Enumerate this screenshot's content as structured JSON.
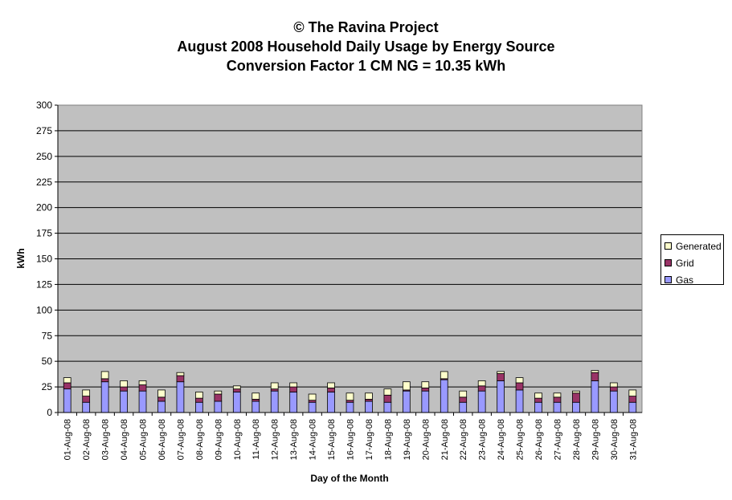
{
  "colors": {
    "gas": "#9999ff",
    "grid": "#993366",
    "generated": "#ffffcc",
    "plot_bg": "#c0c0c0"
  },
  "chart_data": {
    "type": "bar",
    "stacked": true,
    "title": "© The Ravina Project",
    "subtitle_1": "August 2008 Household Daily Usage by Energy Source",
    "subtitle_2": "Conversion Factor 1 CM NG = 10.35 kWh",
    "xlabel": "Day of the Month",
    "ylabel": "kWh",
    "ylim": [
      0,
      300
    ],
    "yticks": [
      0,
      25,
      50,
      75,
      100,
      125,
      150,
      175,
      200,
      225,
      250,
      275,
      300
    ],
    "grid": true,
    "legend_position": "right",
    "categories": [
      "01-Aug-08",
      "02-Aug-08",
      "03-Aug-08",
      "04-Aug-08",
      "05-Aug-08",
      "06-Aug-08",
      "07-Aug-08",
      "08-Aug-08",
      "09-Aug-08",
      "10-Aug-08",
      "11-Aug-08",
      "12-Aug-08",
      "13-Aug-08",
      "14-Aug-08",
      "15-Aug-08",
      "16-Aug-08",
      "17-Aug-08",
      "18-Aug-08",
      "19-Aug-08",
      "20-Aug-08",
      "21-Aug-08",
      "22-Aug-08",
      "23-Aug-08",
      "24-Aug-08",
      "25-Aug-08",
      "26-Aug-08",
      "27-Aug-08",
      "28-Aug-08",
      "29-Aug-08",
      "30-Aug-08",
      "31-Aug-08"
    ],
    "series": [
      {
        "name": "Gas",
        "values": [
          23,
          10,
          30,
          21,
          21,
          11,
          30,
          10,
          11,
          20,
          11,
          21,
          20,
          10,
          20,
          10,
          11,
          10,
          21,
          21,
          32,
          10,
          21,
          31,
          22,
          10,
          10,
          10,
          31,
          21,
          10
        ]
      },
      {
        "name": "Grid",
        "values": [
          6,
          6,
          3,
          4,
          6,
          4,
          6,
          4,
          7,
          3,
          2,
          2,
          5,
          2,
          4,
          2,
          2,
          7,
          1,
          3,
          1,
          5,
          5,
          7,
          7,
          4,
          5,
          9,
          8,
          4,
          6
        ]
      },
      {
        "name": "Generated",
        "values": [
          5,
          6,
          7,
          6,
          4,
          7,
          3,
          6,
          3,
          3,
          6,
          6,
          4,
          6,
          5,
          7,
          6,
          6,
          8,
          6,
          7,
          6,
          5,
          2,
          5,
          5,
          4,
          2,
          2,
          4,
          6
        ]
      }
    ]
  }
}
